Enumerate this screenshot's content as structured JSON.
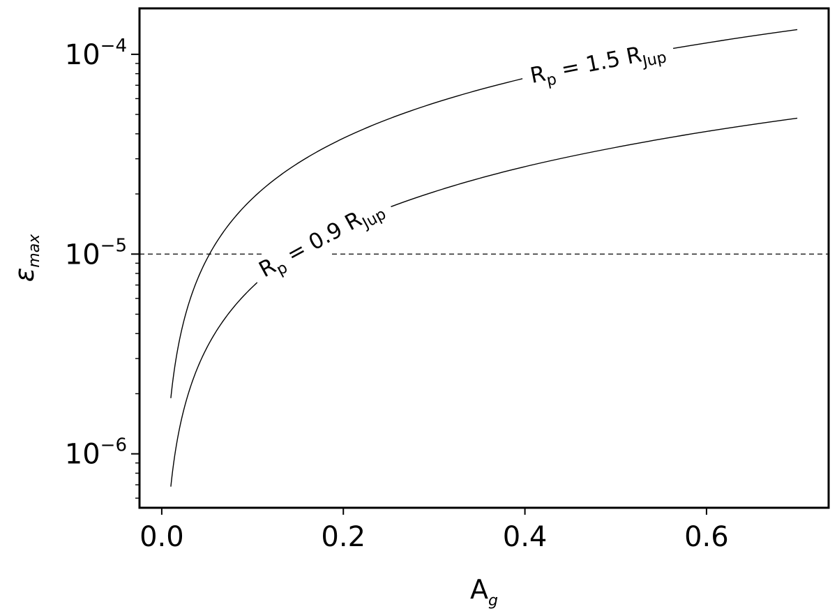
{
  "chart_data": {
    "type": "line",
    "xlabel": "A",
    "xlabel_sub": "g",
    "ylabel": "ε",
    "ylabel_sub": "max",
    "xlim": [
      -0.0245,
      0.7345
    ],
    "ylim_log10": [
      -6.27,
      -3.77
    ],
    "y_scale": "log",
    "grid": false,
    "x_ticks": [
      0.0,
      0.2,
      0.4,
      0.6
    ],
    "x_tick_labels": [
      "0.0",
      "0.2",
      "0.4",
      "0.6"
    ],
    "y_ticks_log10": [
      -6,
      -5,
      -4
    ],
    "y_tick_labels": [
      {
        "base": "10",
        "exp": "−6"
      },
      {
        "base": "10",
        "exp": "−5"
      },
      {
        "base": "10",
        "exp": "−4"
      }
    ],
    "reference_line": {
      "y": 1e-05,
      "style": "dashed"
    },
    "series": [
      {
        "label": {
          "main": "R",
          "sub": "p",
          "text": " = 1.5 R",
          "sub2": "Jup",
          "at_x": 0.48
        },
        "x": [
          0.01,
          0.02,
          0.03,
          0.05,
          0.07,
          0.1,
          0.15,
          0.2,
          0.3,
          0.4,
          0.5,
          0.6,
          0.7
        ],
        "y": [
          1.9e-06,
          3.8e-06,
          5.7e-06,
          9.5e-06,
          1.33e-05,
          1.9e-05,
          2.85e-05,
          3.8e-05,
          5.7e-05,
          7.6e-05,
          9.5e-05,
          0.000114,
          0.000133
        ]
      },
      {
        "label": {
          "main": "R",
          "sub": "p",
          "text": " = 0.9 R",
          "sub2": "Jup",
          "at_x": 0.175
        },
        "x": [
          0.01,
          0.02,
          0.03,
          0.05,
          0.07,
          0.1,
          0.15,
          0.2,
          0.3,
          0.4,
          0.5,
          0.6,
          0.7
        ],
        "y": [
          6.85e-07,
          1.37e-06,
          2.05e-06,
          3.42e-06,
          4.79e-06,
          6.85e-06,
          1.03e-05,
          1.37e-05,
          2.05e-05,
          2.74e-05,
          3.42e-05,
          4.11e-05,
          4.79e-05
        ]
      }
    ]
  }
}
